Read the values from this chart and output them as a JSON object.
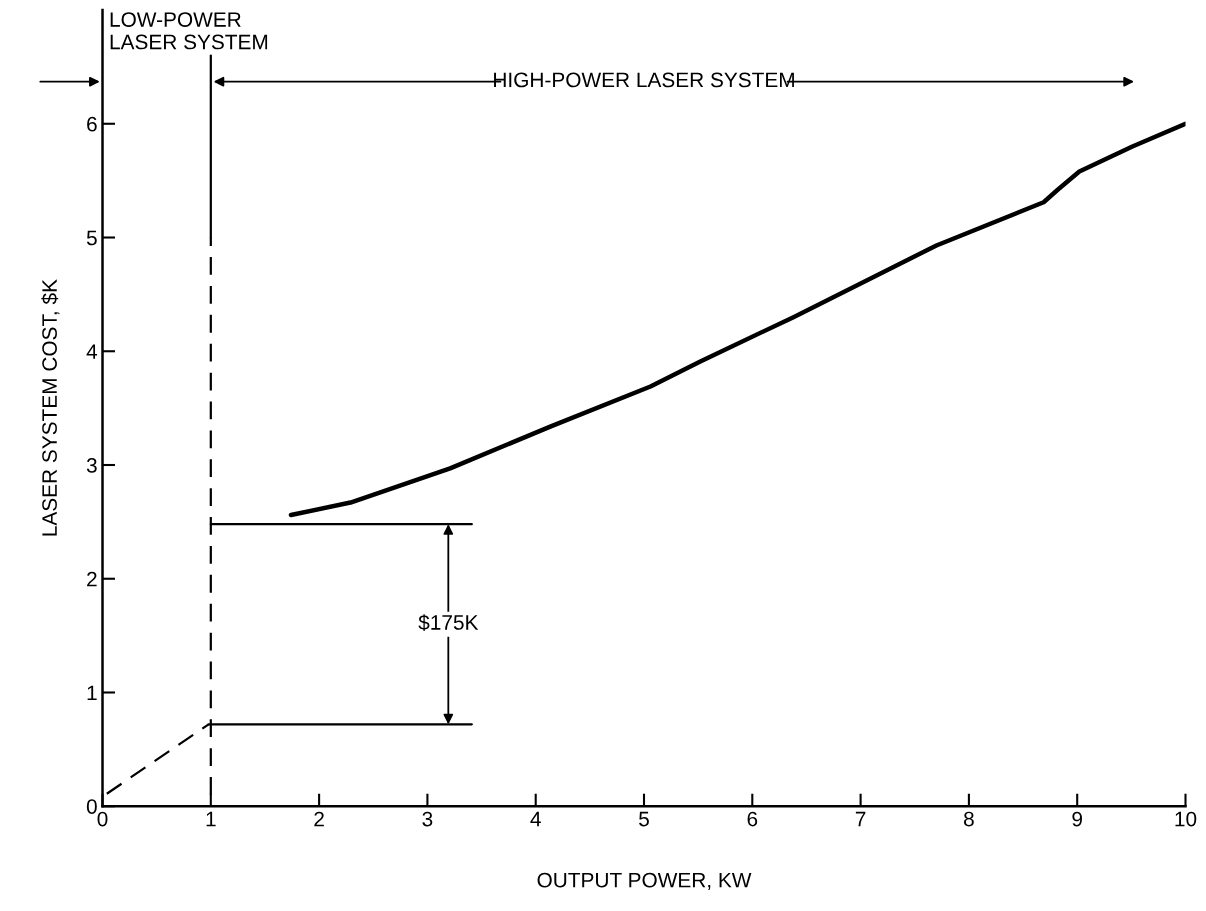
{
  "chart_data": {
    "type": "line",
    "xlabel": "OUTPUT POWER, KW",
    "ylabel": "LASER SYSTEM COST, $K",
    "xlim": [
      0,
      10
    ],
    "ylim": [
      0,
      7
    ],
    "xticks": [
      0,
      1,
      2,
      3,
      4,
      5,
      6,
      7,
      8,
      9,
      10
    ],
    "yticks": [
      0,
      1,
      2,
      3,
      4,
      5,
      6
    ],
    "grid": false,
    "annotations": [
      "LOW-POWER\nLASER SYSTEM",
      "HIGH-POWER LASER SYSTEM",
      "$175K"
    ],
    "series": [
      {
        "color": "#000000",
        "line_style": "solid",
        "x": [
          1.74,
          2.29,
          3.21,
          4.14,
          5.06,
          5.52,
          6.38,
          7.7,
          8.69,
          8.82,
          9.02,
          9.51,
          10.0
        ],
        "values": [
          2.56,
          2.67,
          2.97,
          3.34,
          3.69,
          3.91,
          4.3,
          4.93,
          5.31,
          5.42,
          5.58,
          5.8,
          6.0
        ]
      },
      {
        "color": "#000000",
        "line_style": "dashed",
        "x": [
          0.04,
          0.98
        ],
        "values": [
          0.11,
          0.72
        ]
      },
      {
        "color": "#000000",
        "line_style": "solid",
        "x": [
          0.98,
          3.41
        ],
        "values": [
          0.72,
          0.72
        ]
      },
      {
        "color": "#000000",
        "line_style": "solid",
        "x": [
          1.0,
          3.41
        ],
        "values": [
          2.48,
          2.48
        ]
      },
      {
        "color": "#000000",
        "line_style": "dashed",
        "x": [
          1.0,
          1.0
        ],
        "values": [
          0.1,
          5.0
        ]
      },
      {
        "color": "#000000",
        "line_style": "solid",
        "x": [
          1.0,
          1.0
        ],
        "values": [
          5.0,
          6.6
        ]
      }
    ]
  }
}
